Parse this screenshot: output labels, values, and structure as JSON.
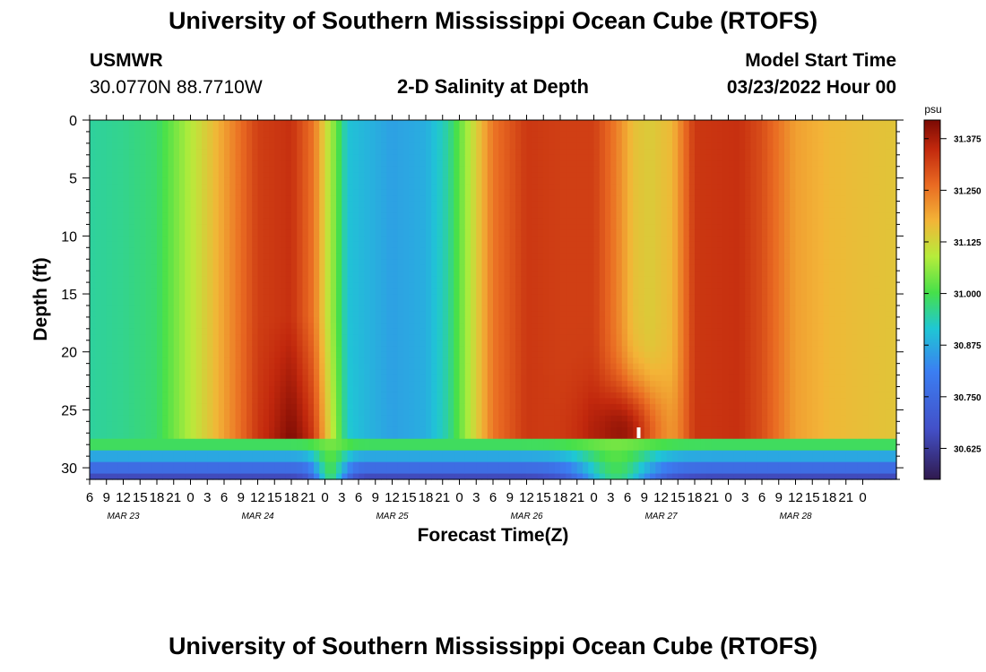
{
  "header": {
    "title": "University of Southern Mississippi Ocean Cube (RTOFS)",
    "station": "USMWR",
    "coords": "30.0770N  88.7710W",
    "plot_title": "2-D Salinity at Depth",
    "model_start_label": "Model Start Time",
    "model_start_value": "03/23/2022 Hour 00"
  },
  "footer": {
    "title": "University of Southern Mississippi Ocean Cube (RTOFS)"
  },
  "chart_data": {
    "type": "heatmap",
    "title": "2-D Salinity at Depth",
    "xlabel": "Forecast Time(Z)",
    "ylabel": "Depth (ft)",
    "x_ticks": [
      "6",
      "9",
      "12",
      "15",
      "18",
      "21",
      "0",
      "3",
      "6",
      "9",
      "12",
      "15",
      "18",
      "21",
      "0",
      "3",
      "6",
      "9",
      "12",
      "15",
      "18",
      "21",
      "0",
      "3",
      "6",
      "9",
      "12",
      "15",
      "18",
      "21",
      "0",
      "3",
      "6",
      "9",
      "12",
      "15",
      "18",
      "21",
      "0",
      "3",
      "6",
      "9",
      "12",
      "15",
      "18",
      "21",
      "0"
    ],
    "date_labels": [
      "MAR 23",
      "MAR 24",
      "MAR 25",
      "MAR 26",
      "MAR 27",
      "MAR 28"
    ],
    "x_range_hours": [
      6,
      150
    ],
    "y_ticks": [
      0,
      5,
      10,
      15,
      20,
      25,
      30
    ],
    "ylim": [
      0,
      31
    ],
    "colorbar": {
      "unit": "psu",
      "ticks": [
        "31.375",
        "31.250",
        "31.125",
        "31.000",
        "30.875",
        "30.750",
        "30.625"
      ],
      "range": [
        30.55,
        31.42
      ]
    },
    "surface_profile": [
      {
        "hour": 6,
        "value": 30.95
      },
      {
        "hour": 12,
        "value": 30.96
      },
      {
        "hour": 18,
        "value": 30.98
      },
      {
        "hour": 24,
        "value": 31.09
      },
      {
        "hour": 28,
        "value": 31.16
      },
      {
        "hour": 32,
        "value": 31.24
      },
      {
        "hour": 36,
        "value": 31.32
      },
      {
        "hour": 42,
        "value": 31.34
      },
      {
        "hour": 46,
        "value": 31.25
      },
      {
        "hour": 48,
        "value": 31.13
      },
      {
        "hour": 50,
        "value": 31.03
      },
      {
        "hour": 52,
        "value": 30.91
      },
      {
        "hour": 60,
        "value": 30.86
      },
      {
        "hour": 66,
        "value": 30.88
      },
      {
        "hour": 70,
        "value": 30.95
      },
      {
        "hour": 73,
        "value": 31.06
      },
      {
        "hour": 78,
        "value": 31.25
      },
      {
        "hour": 84,
        "value": 31.33
      },
      {
        "hour": 90,
        "value": 31.32
      },
      {
        "hour": 96,
        "value": 31.32
      },
      {
        "hour": 100,
        "value": 31.24
      },
      {
        "hour": 103,
        "value": 31.16
      },
      {
        "hour": 106,
        "value": 31.14
      },
      {
        "hour": 110,
        "value": 31.17
      },
      {
        "hour": 114,
        "value": 31.33
      },
      {
        "hour": 122,
        "value": 31.34
      },
      {
        "hour": 126,
        "value": 31.3
      },
      {
        "hour": 132,
        "value": 31.2
      },
      {
        "hour": 138,
        "value": 31.17
      },
      {
        "hour": 150,
        "value": 31.15
      }
    ],
    "bottom_layers": [
      {
        "depth_from": 27.5,
        "depth_to": 28.5,
        "value": 30.99
      },
      {
        "depth_from": 28.5,
        "depth_to": 29.5,
        "value": 30.87
      },
      {
        "depth_from": 29.5,
        "depth_to": 30.5,
        "value": 30.76
      },
      {
        "depth_from": 30.5,
        "depth_to": 31,
        "value": 30.66
      }
    ],
    "deep_max": {
      "hour": 101,
      "depth": 27,
      "value": 31.41
    }
  }
}
